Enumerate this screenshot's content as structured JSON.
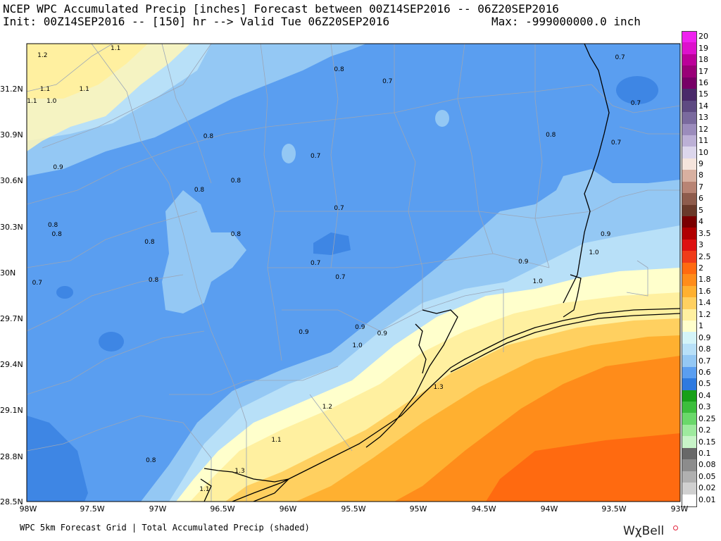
{
  "header": {
    "line1": "NCEP WPC Accumulated Precip [inches] Forecast between 00Z14SEP2016 -- 06Z20SEP2016",
    "line2": "Init: 00Z14SEP2016 -- [150] hr --> Valid Tue 06Z20SEP2016",
    "max": "Max: -999000000.0 inch"
  },
  "footer": {
    "text": "WPC 5km Forecast Grid | Total Accumulated Precip (shaded)",
    "brand": "WχBell"
  },
  "axes": {
    "lat_labels": [
      "31.2N",
      "30.9N",
      "30.6N",
      "30.3N",
      "30N",
      "29.7N",
      "29.4N",
      "29.1N",
      "28.8N",
      "28.5N"
    ],
    "lon_labels": [
      "98W",
      "97.5W",
      "97W",
      "96.5W",
      "96W",
      "95.5W",
      "95W",
      "94.5W",
      "94W",
      "93.5W",
      "93W"
    ]
  },
  "colorbar": {
    "labels": [
      "20",
      "19",
      "18",
      "17",
      "16",
      "15",
      "14",
      "13",
      "12",
      "11",
      "10",
      "9",
      "8",
      "7",
      "6",
      "5",
      "4",
      "3.5",
      "3",
      "2.5",
      "2",
      "1.8",
      "1.6",
      "1.4",
      "1.2",
      "1",
      "0.9",
      "0.8",
      "0.7",
      "0.6",
      "0.5",
      "0.4",
      "0.3",
      "0.25",
      "0.2",
      "0.15",
      "0.1",
      "0.08",
      "0.05",
      "0.02",
      "0.01"
    ],
    "colors": [
      "#ee22ee",
      "#dd11cc",
      "#bb0099",
      "#990077",
      "#770066",
      "#4a2a6a",
      "#5e4a82",
      "#7a6a9e",
      "#9b8cbc",
      "#bcb0d6",
      "#dcd6ec",
      "#f5e4dc",
      "#d8b0a0",
      "#b88474",
      "#8e5c4c",
      "#6a3a2a",
      "#7a0000",
      "#b00000",
      "#dd1111",
      "#f03c1a",
      "#ff6a10",
      "#ff8c1a",
      "#ffb030",
      "#ffd060",
      "#fff0a0",
      "#ffffcc",
      "#d4f4f8",
      "#b8e0f8",
      "#94c8f4",
      "#5a9ef0",
      "#2e7ae0",
      "#18a018",
      "#3cbe3c",
      "#6ad86a",
      "#9eea9e",
      "#c8f4c8",
      "#686868",
      "#8c8c8c",
      "#b0b0b0",
      "#d0d0d0",
      "#ffffff"
    ]
  },
  "map": {
    "value_labels": [
      {
        "text": "1.2",
        "x": -97.88,
        "y": 31.42
      },
      {
        "text": "1.1",
        "x": -97.32,
        "y": 31.47
      },
      {
        "text": "1.1",
        "x": -97.86,
        "y": 31.2
      },
      {
        "text": "1.1",
        "x": -97.56,
        "y": 31.2
      },
      {
        "text": "1.1",
        "x": -97.96,
        "y": 31.12
      },
      {
        "text": "1.0",
        "x": -97.81,
        "y": 31.12
      },
      {
        "text": "0.8",
        "x": -95.61,
        "y": 31.33
      },
      {
        "text": "0.7",
        "x": -95.24,
        "y": 31.25
      },
      {
        "text": "0.7",
        "x": -93.46,
        "y": 31.41
      },
      {
        "text": "0.7",
        "x": -93.34,
        "y": 31.11
      },
      {
        "text": "0.8",
        "x": -96.61,
        "y": 30.89
      },
      {
        "text": "0.8",
        "x": -93.99,
        "y": 30.9
      },
      {
        "text": "0.7",
        "x": -93.49,
        "y": 30.85
      },
      {
        "text": "0.7",
        "x": -95.79,
        "y": 30.76
      },
      {
        "text": "0.9",
        "x": -97.76,
        "y": 30.69
      },
      {
        "text": "0.8",
        "x": -96.68,
        "y": 30.54
      },
      {
        "text": "0.8",
        "x": -96.4,
        "y": 30.6
      },
      {
        "text": "0.7",
        "x": -95.61,
        "y": 30.42
      },
      {
        "text": "0.8",
        "x": -97.8,
        "y": 30.31
      },
      {
        "text": "0.8",
        "x": -97.77,
        "y": 30.25
      },
      {
        "text": "0.8",
        "x": -96.4,
        "y": 30.25
      },
      {
        "text": "0.9",
        "x": -93.57,
        "y": 30.25
      },
      {
        "text": "0.8",
        "x": -97.06,
        "y": 30.2
      },
      {
        "text": "1.0",
        "x": -93.66,
        "y": 30.13
      },
      {
        "text": "0.7",
        "x": -95.79,
        "y": 30.06
      },
      {
        "text": "0.9",
        "x": -94.2,
        "y": 30.07
      },
      {
        "text": "0.7",
        "x": -95.6,
        "y": 29.97
      },
      {
        "text": "0.8",
        "x": -97.03,
        "y": 29.95
      },
      {
        "text": "1.0",
        "x": -94.09,
        "y": 29.94
      },
      {
        "text": "0.7",
        "x": -97.92,
        "y": 29.93
      },
      {
        "text": "0.9",
        "x": -95.88,
        "y": 29.61
      },
      {
        "text": "0.9",
        "x": -95.45,
        "y": 29.64
      },
      {
        "text": "0.9",
        "x": -95.28,
        "y": 29.6
      },
      {
        "text": "1.0",
        "x": -95.47,
        "y": 29.52
      },
      {
        "text": "1.3",
        "x": -94.85,
        "y": 29.25
      },
      {
        "text": "1.2",
        "x": -95.7,
        "y": 29.12
      },
      {
        "text": "1.1",
        "x": -96.09,
        "y": 28.9
      },
      {
        "text": "0.8",
        "x": -97.05,
        "y": 28.77
      },
      {
        "text": "1.3",
        "x": -96.37,
        "y": 28.7
      },
      {
        "text": "1.1",
        "x": -96.64,
        "y": 28.58
      }
    ]
  }
}
